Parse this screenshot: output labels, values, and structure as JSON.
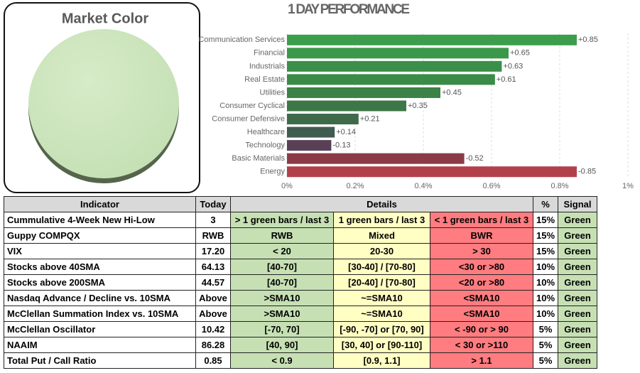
{
  "market_color": {
    "title": "Market Color",
    "color": "#c5e0b4"
  },
  "chart_data": {
    "type": "hbar",
    "title": "1 DAY PERFORMANCE",
    "categories": [
      "Communication Services",
      "Financial",
      "Industrials",
      "Real Estate",
      "Utilities",
      "Consumer Cyclical",
      "Consumer Defensive",
      "Healthcare",
      "Technology",
      "Basic Materials",
      "Energy"
    ],
    "values": [
      0.85,
      0.65,
      0.63,
      0.61,
      0.45,
      0.35,
      0.21,
      0.14,
      -0.13,
      -0.52,
      -0.85
    ],
    "value_labels": [
      "+0.85",
      "+0.65",
      "+0.63",
      "+0.61",
      "+0.45",
      "+0.35",
      "+0.21",
      "+0.14",
      "-0.13",
      "-0.52",
      "-0.85"
    ],
    "colors": [
      "#3c9e4c",
      "#3b984b",
      "#3a904a",
      "#3a8a48",
      "#3b8246",
      "#3d7748",
      "#3f6a4a",
      "#405c50",
      "#5a4056",
      "#8c3b46",
      "#b2404b"
    ],
    "xlim": [
      0,
      1
    ],
    "xticks": [
      {
        "value": 0,
        "label": "0%"
      },
      {
        "value": 0.2,
        "label": "0.2%"
      },
      {
        "value": 0.4,
        "label": "0.4%"
      },
      {
        "value": 0.6,
        "label": "0.6%"
      },
      {
        "value": 0.8,
        "label": "0.8%"
      },
      {
        "value": 1,
        "label": "1%"
      }
    ],
    "grid": true
  },
  "table": {
    "header": [
      "Indicator",
      "Today",
      "Details",
      "%",
      "Signal"
    ],
    "rows": [
      [
        "Cummulative 4-Week New Hi-Low",
        "3",
        "> 1 green bars / last 3",
        "1 green bars / last 3",
        "< 1 green bars / last 3",
        "15%",
        "Green"
      ],
      [
        "Guppy COMPQX",
        "RWB",
        "RWB",
        "Mixed",
        "BWR",
        "15%",
        "Green"
      ],
      [
        "VIX",
        "17.20",
        "< 20",
        "20-30",
        "> 30",
        "15%",
        "Green"
      ],
      [
        "Stocks above 40SMA",
        "64.13",
        "[40-70]",
        "[30-40] / [70-80]",
        "<30 or >80",
        "10%",
        "Green"
      ],
      [
        "Stocks above 200SMA",
        "44.57",
        "[40-70]",
        "[20-40] / [70-80]",
        "<20 or >80",
        "10%",
        "Green"
      ],
      [
        "Nasdaq Advance / Decline vs. 10SMA",
        "Above",
        ">SMA10",
        "~=SMA10",
        "<SMA10",
        "10%",
        "Green"
      ],
      [
        "McClellan Summation Index vs. 10SMA",
        "Above",
        ">SMA10",
        "~=SMA10",
        "<SMA10",
        "10%",
        "Green"
      ],
      [
        "McClellan Oscillator",
        "10.42",
        "[-70,  70]",
        "[-90, -70] or [70, 90]",
        "< -90 or > 90",
        "5%",
        "Green"
      ],
      [
        "NAAIM",
        "86.28",
        "[40, 90]",
        "[30, 40] or [90-110]",
        "< 30 or >110",
        "5%",
        "Green"
      ],
      [
        "Total Put / Call Ratio",
        "0.85",
        "< 0.9",
        "[0.9, 1.1]",
        "> 1.1",
        "5%",
        "Green"
      ]
    ]
  }
}
